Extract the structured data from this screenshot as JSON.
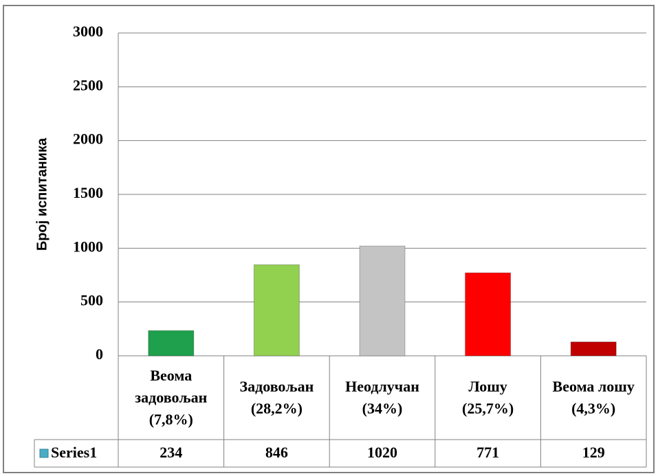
{
  "chart_data": {
    "type": "bar",
    "y_label": "Број испитаника",
    "categories": [
      "Веома задовољан (7,8%)",
      "Задовољан (28,2%)",
      "Неодлучан (34%)",
      "Лошу (25,7%)",
      "Веома лошу (4,3%)"
    ],
    "series": [
      {
        "name": "Series1",
        "color": "#4bacc6",
        "colors": [
          "#1ea04c",
          "#92d050",
          "#c4c4c4",
          "#ff0000",
          "#c00000"
        ],
        "values": [
          234,
          846,
          1020,
          771,
          129
        ]
      }
    ],
    "ylim": [
      0,
      3000
    ],
    "yticks": [
      0,
      500,
      1000,
      1500,
      2000,
      2500,
      3000
    ],
    "grid": true
  }
}
